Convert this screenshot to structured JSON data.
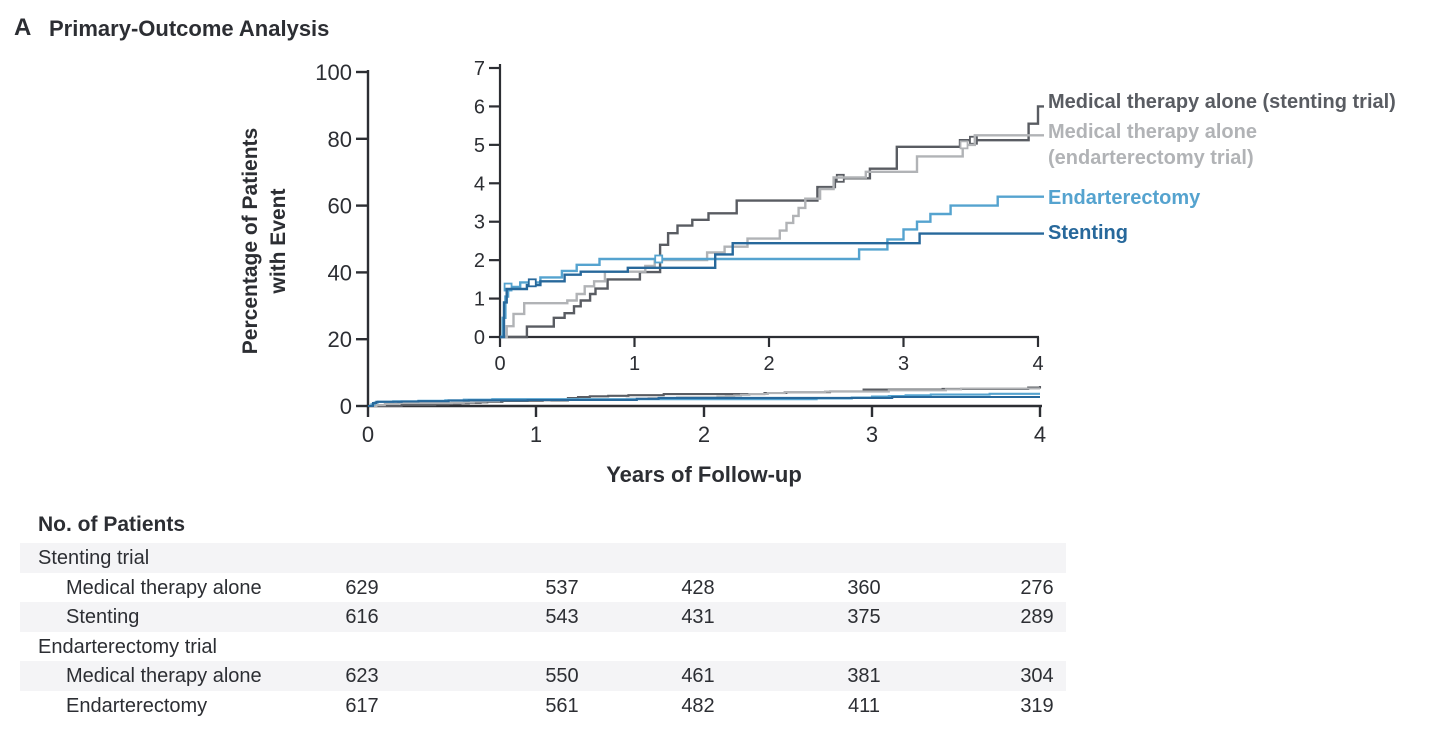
{
  "panel": {
    "label": "A",
    "title": "Primary-Outcome Analysis"
  },
  "axes": {
    "main": {
      "ylabel_lines": [
        "Percentage of Patients",
        "with Event"
      ],
      "xlabel": "Years of Follow-up",
      "yticks": [
        0,
        20,
        40,
        60,
        80,
        100
      ],
      "xticks": [
        0,
        1,
        2,
        3,
        4
      ],
      "ylim": [
        0,
        100
      ],
      "xlim": [
        0,
        4
      ]
    },
    "inset": {
      "yticks": [
        0,
        1,
        2,
        3,
        4,
        5,
        6,
        7
      ],
      "xticks": [
        0,
        1,
        2,
        3,
        4
      ],
      "ylim": [
        0,
        7
      ],
      "xlim": [
        0,
        4
      ]
    }
  },
  "chart_data": {
    "type": "line",
    "title": "Primary-Outcome Analysis",
    "xlabel": "Years of Follow-up",
    "ylabel": "Percentage of Patients with Event",
    "interpolation": "step-after",
    "x_range": [
      0,
      4
    ],
    "main_y_range": [
      0,
      100
    ],
    "inset_y_range": [
      0,
      7
    ],
    "legend_position": "right",
    "grid": false,
    "series": [
      {
        "id": "medical-stenting-trial",
        "label_lines": [
          "Medical therapy alone (stenting trial)"
        ],
        "color": "#595c62",
        "steps": [
          [
            0,
            0
          ],
          [
            0.2,
            0.27
          ],
          [
            0.4,
            0.5
          ],
          [
            0.48,
            0.62
          ],
          [
            0.55,
            0.8
          ],
          [
            0.6,
            0.95
          ],
          [
            0.67,
            1.12
          ],
          [
            0.71,
            1.26
          ],
          [
            0.8,
            1.5
          ],
          [
            1.04,
            1.69
          ],
          [
            1.19,
            2.4
          ],
          [
            1.25,
            2.7
          ],
          [
            1.32,
            2.9
          ],
          [
            1.43,
            3.05
          ],
          [
            1.55,
            3.22
          ],
          [
            1.76,
            3.55
          ],
          [
            2.36,
            3.9
          ],
          [
            2.49,
            4.13
          ],
          [
            2.75,
            4.38
          ],
          [
            2.95,
            4.95
          ],
          [
            3.42,
            5.12
          ],
          [
            3.93,
            5.55
          ],
          [
            4.0,
            6.0
          ]
        ],
        "markers": [
          [
            2.53,
            4.13
          ],
          [
            3.52,
            5.12
          ]
        ],
        "final_value_pct": 6.0
      },
      {
        "id": "medical-endarterectomy-trial",
        "label_lines": [
          "Medical therapy alone",
          "(endarterectomy trial)"
        ],
        "color": "#b1b3b6",
        "steps": [
          [
            0,
            0
          ],
          [
            0.05,
            0.28
          ],
          [
            0.1,
            0.6
          ],
          [
            0.18,
            0.88
          ],
          [
            0.5,
            0.95
          ],
          [
            0.57,
            1.12
          ],
          [
            0.63,
            1.32
          ],
          [
            0.7,
            1.45
          ],
          [
            0.78,
            1.7
          ],
          [
            1.08,
            1.85
          ],
          [
            1.15,
            2.0
          ],
          [
            1.54,
            2.2
          ],
          [
            1.67,
            2.35
          ],
          [
            1.84,
            2.56
          ],
          [
            2.08,
            2.77
          ],
          [
            2.13,
            2.97
          ],
          [
            2.18,
            3.15
          ],
          [
            2.22,
            3.36
          ],
          [
            2.27,
            3.6
          ],
          [
            2.38,
            3.85
          ],
          [
            2.48,
            4.15
          ],
          [
            2.72,
            4.3
          ],
          [
            3.1,
            4.7
          ],
          [
            3.44,
            5.0
          ],
          [
            3.53,
            5.25
          ]
        ],
        "markers": [
          [
            3.45,
            5.0
          ]
        ],
        "final_value_pct": 5.25
      },
      {
        "id": "endarterectomy",
        "label_lines": [
          "Endarterectomy"
        ],
        "color": "#55a3cf",
        "steps": [
          [
            0,
            0
          ],
          [
            0.02,
            0.5
          ],
          [
            0.04,
            1.05
          ],
          [
            0.06,
            1.3
          ],
          [
            0.15,
            1.42
          ],
          [
            0.3,
            1.55
          ],
          [
            0.46,
            1.72
          ],
          [
            0.57,
            1.88
          ],
          [
            0.74,
            2.03
          ],
          [
            2.67,
            2.28
          ],
          [
            2.88,
            2.54
          ],
          [
            3.0,
            2.8
          ],
          [
            3.1,
            3.0
          ],
          [
            3.2,
            3.2
          ],
          [
            3.35,
            3.42
          ],
          [
            3.7,
            3.65
          ]
        ],
        "markers": [
          [
            0.06,
            1.3
          ],
          [
            1.18,
            2.03
          ]
        ],
        "final_value_pct": 3.65
      },
      {
        "id": "stenting",
        "label_lines": [
          "Stenting"
        ],
        "color": "#27689b",
        "steps": [
          [
            0,
            0
          ],
          [
            0.03,
            0.9
          ],
          [
            0.05,
            1.25
          ],
          [
            0.2,
            1.35
          ],
          [
            0.3,
            1.45
          ],
          [
            0.48,
            1.62
          ],
          [
            0.6,
            1.7
          ],
          [
            0.95,
            1.8
          ],
          [
            1.6,
            2.15
          ],
          [
            1.73,
            2.44
          ],
          [
            3.12,
            2.69
          ]
        ],
        "markers": [
          [
            0.24,
            1.41
          ]
        ],
        "final_value_pct": 2.69
      }
    ]
  },
  "table": {
    "header": "No. of Patients",
    "rows": [
      {
        "label": "Stenting trial",
        "indent": 0,
        "values": [],
        "striped": true
      },
      {
        "label": "Medical therapy alone",
        "indent": 1,
        "values": [
          "629",
          "537",
          "428",
          "360",
          "276"
        ],
        "striped": false
      },
      {
        "label": "Stenting",
        "indent": 1,
        "values": [
          "616",
          "543",
          "431",
          "375",
          "289"
        ],
        "striped": true
      },
      {
        "label": "Endarterectomy trial",
        "indent": 0,
        "values": [],
        "striped": false
      },
      {
        "label": "Medical therapy alone",
        "indent": 1,
        "values": [
          "623",
          "550",
          "461",
          "381",
          "304"
        ],
        "striped": true
      },
      {
        "label": "Endarterectomy",
        "indent": 1,
        "values": [
          "617",
          "561",
          "482",
          "411",
          "319"
        ],
        "striped": false
      }
    ]
  },
  "colors": {
    "text": "#2c2e33",
    "axis": "#2c2e33",
    "table_stripe": "#f4f4f6"
  }
}
